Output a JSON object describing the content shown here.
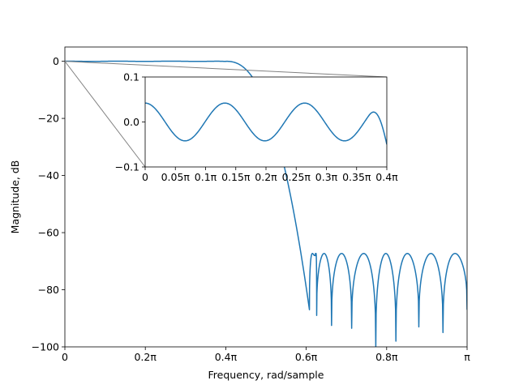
{
  "chart_data": [
    {
      "type": "line",
      "xlabel": "Frequency, rad/sample",
      "ylabel": "Magnitude, dB",
      "xlim": [
        0,
        1
      ],
      "ylim": [
        -100,
        5
      ],
      "xticks": [
        0,
        0.2,
        0.4,
        0.6,
        0.8,
        1.0
      ],
      "xtick_labels": [
        "0",
        "0.2π",
        "0.4π",
        "0.6π",
        "0.8π",
        "π"
      ],
      "yticks": [
        0,
        -20,
        -40,
        -60,
        -80,
        -100
      ],
      "ytick_labels": [
        "0",
        "−20",
        "−40",
        "−60",
        "−80",
        "−100"
      ],
      "grid": false,
      "line_color": "#1f77b4",
      "filter": {
        "passband_edge": 0.4,
        "transition_end": 0.6,
        "passband_ripple_db": 0.042,
        "stopband_level_db": -67.3,
        "stopband_nulls": [
          {
            "x": 0.608,
            "y": -87
          },
          {
            "x": 0.623,
            "y": -67.3
          },
          {
            "x": 0.626,
            "y": -89
          },
          {
            "x": 0.663,
            "y": -92.5
          },
          {
            "x": 0.713,
            "y": -93.5
          },
          {
            "x": 0.773,
            "y": -100
          },
          {
            "x": 0.823,
            "y": -98
          },
          {
            "x": 0.88,
            "y": -93
          },
          {
            "x": 0.94,
            "y": -95
          },
          {
            "x": 1.0,
            "y": -87
          }
        ]
      }
    },
    {
      "type": "line",
      "role": "inset-zoom",
      "xlim": [
        0,
        0.4
      ],
      "ylim": [
        -0.1,
        0.1
      ],
      "xticks": [
        0,
        0.05,
        0.1,
        0.15,
        0.2,
        0.25,
        0.3,
        0.35,
        0.4
      ],
      "xtick_labels": [
        "0",
        "0.05π",
        "0.1π",
        "0.15π",
        "0.2π",
        "0.25π",
        "0.3π",
        "0.35π",
        "0.4π"
      ],
      "yticks": [
        0.1,
        0.0,
        -0.1
      ],
      "ytick_labels": [
        "0.1",
        "0.0",
        "−0.1"
      ],
      "ripple_amplitude": 0.042,
      "ripple_period": 0.132,
      "end_value": -0.05,
      "connector_color": "#808080"
    }
  ]
}
